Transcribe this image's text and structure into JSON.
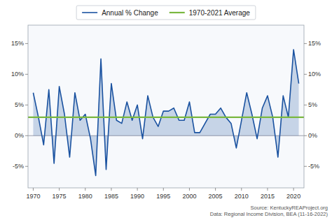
{
  "chart_data": {
    "type": "area",
    "x": [
      1970,
      1971,
      1972,
      1973,
      1974,
      1975,
      1976,
      1977,
      1978,
      1979,
      1980,
      1981,
      1982,
      1983,
      1984,
      1985,
      1986,
      1987,
      1988,
      1989,
      1990,
      1991,
      1992,
      1993,
      1994,
      1995,
      1996,
      1997,
      1998,
      1999,
      2000,
      2001,
      2002,
      2003,
      2004,
      2005,
      2006,
      2007,
      2008,
      2009,
      2010,
      2011,
      2012,
      2013,
      2014,
      2015,
      2016,
      2017,
      2018,
      2019,
      2020,
      2021
    ],
    "series": [
      {
        "name": "Annual % Change",
        "color": "#1a52a0",
        "values": [
          7.0,
          3.0,
          -1.5,
          7.5,
          -4.5,
          8.0,
          3.5,
          -3.5,
          7.0,
          2.5,
          3.5,
          -0.5,
          -6.5,
          12.5,
          -5.5,
          8.5,
          2.5,
          2.0,
          5.5,
          2.5,
          5.0,
          -0.5,
          6.5,
          3.0,
          1.5,
          4.0,
          4.0,
          4.5,
          2.5,
          2.5,
          5.5,
          0.5,
          0.5,
          2.0,
          3.5,
          3.5,
          4.5,
          3.0,
          2.0,
          -2.0,
          2.5,
          7.0,
          3.5,
          -0.5,
          4.5,
          6.5,
          3.0,
          -3.5,
          6.5,
          3.0,
          14.0,
          8.5
        ]
      }
    ],
    "reference_lines": [
      {
        "name": "1970-2021 Average",
        "value": 3.0,
        "color": "#7ab840"
      }
    ],
    "xlim": [
      1969,
      2022
    ],
    "xticks": [
      1970,
      1975,
      1980,
      1985,
      1990,
      1995,
      2000,
      2005,
      2010,
      2015,
      2020
    ],
    "ylim": [
      -8.5,
      18.0
    ],
    "yticks": [
      {
        "value": -5,
        "label": "-5%"
      },
      {
        "value": 0,
        "label": "0%"
      },
      {
        "value": 5,
        "label": "5%"
      },
      {
        "value": 10,
        "label": "10%"
      },
      {
        "value": 15,
        "label": "15%"
      }
    ],
    "y2lim": [
      -8.5,
      18.0
    ],
    "y2ticks": [
      {
        "value": -5,
        "label": "-5%"
      },
      {
        "value": 0,
        "label": "0%"
      },
      {
        "value": 5,
        "label": "5%"
      },
      {
        "value": 10,
        "label": "10%"
      },
      {
        "value": 15,
        "label": "15%"
      }
    ],
    "grid": false,
    "legend": "top",
    "annotations": [
      "Source: KentuckyREAProject.org",
      "Data: Regional Income Division, BEA (11-16-2022)"
    ]
  }
}
